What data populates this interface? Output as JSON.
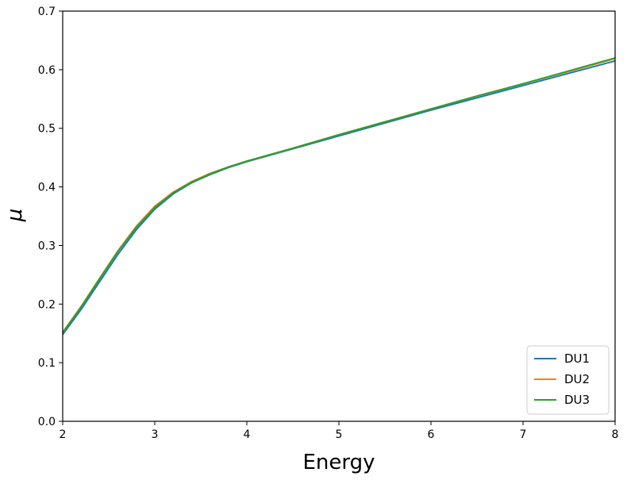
{
  "chart_data": {
    "type": "line",
    "xlabel": "Energy",
    "ylabel": "μ",
    "xlim": [
      2,
      8
    ],
    "ylim": [
      0.0,
      0.7
    ],
    "x_ticks": [
      "2",
      "3",
      "4",
      "5",
      "6",
      "7",
      "8"
    ],
    "y_ticks": [
      "0.0",
      "0.1",
      "0.2",
      "0.3",
      "0.4",
      "0.5",
      "0.6",
      "0.7"
    ],
    "grid": false,
    "legend_position": "bottom-right",
    "x": [
      2.0,
      2.2,
      2.4,
      2.6,
      2.8,
      3.0,
      3.2,
      3.4,
      3.6,
      3.8,
      4.0,
      4.5,
      5.0,
      5.5,
      6.0,
      6.5,
      7.0,
      7.5,
      8.0
    ],
    "series": [
      {
        "name": "DU1",
        "color": "#1f77b4",
        "values": [
          0.148,
          0.191,
          0.238,
          0.285,
          0.327,
          0.362,
          0.388,
          0.407,
          0.421,
          0.433,
          0.443,
          0.465,
          0.487,
          0.509,
          0.531,
          0.552,
          0.573,
          0.594,
          0.615
        ]
      },
      {
        "name": "DU2",
        "color": "#ff7f0e",
        "values": [
          0.152,
          0.196,
          0.244,
          0.291,
          0.333,
          0.367,
          0.391,
          0.409,
          0.423,
          0.434,
          0.444,
          0.466,
          0.489,
          0.511,
          0.533,
          0.555,
          0.576,
          0.597,
          0.619
        ]
      },
      {
        "name": "DU3",
        "color": "#2ca02c",
        "values": [
          0.151,
          0.195,
          0.243,
          0.29,
          0.331,
          0.365,
          0.39,
          0.408,
          0.422,
          0.434,
          0.444,
          0.466,
          0.489,
          0.511,
          0.533,
          0.555,
          0.576,
          0.598,
          0.62
        ]
      }
    ]
  }
}
